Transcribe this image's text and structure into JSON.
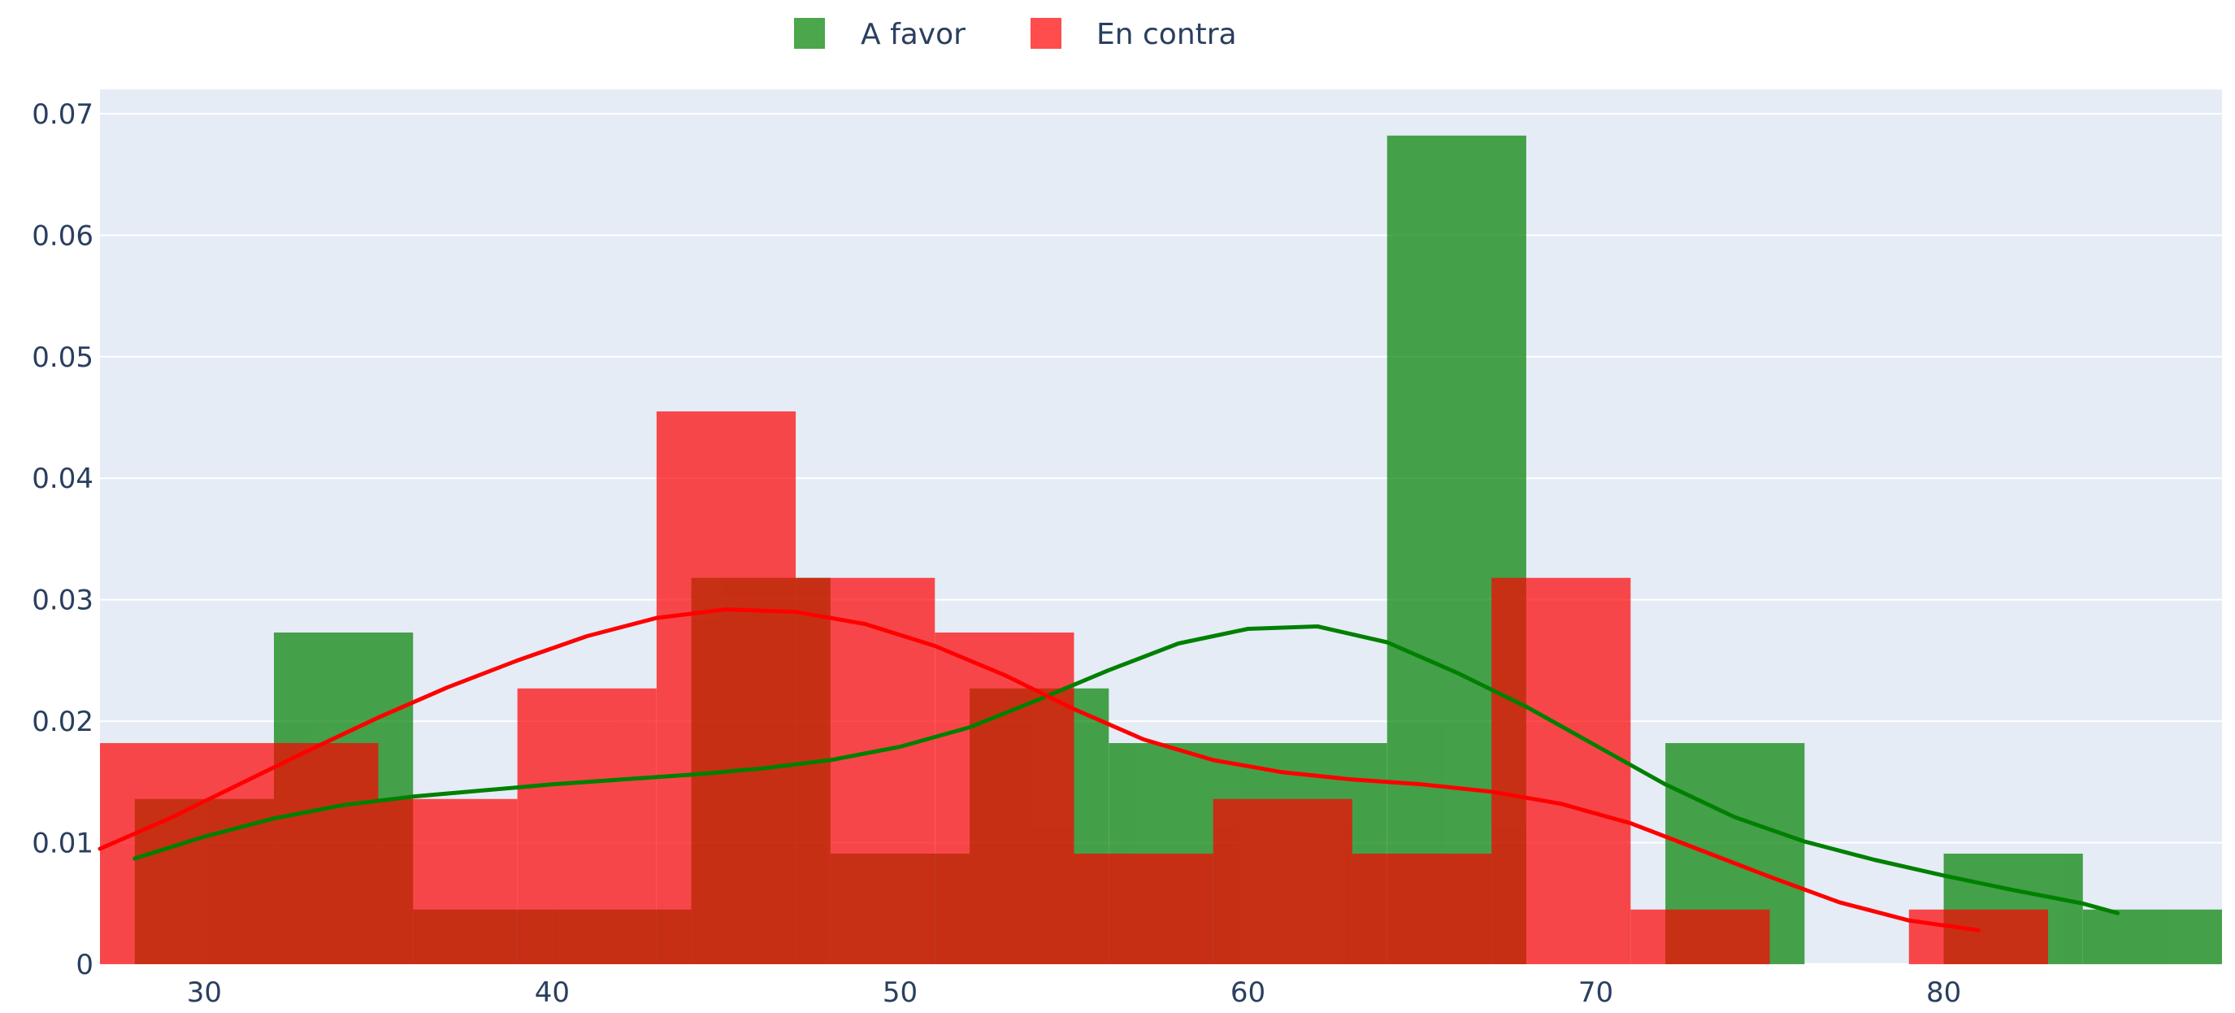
{
  "chart_data": {
    "type": "bar",
    "title": "",
    "xlabel": "",
    "ylabel": "",
    "xlim": [
      27,
      88
    ],
    "ylim": [
      0,
      0.072
    ],
    "x_ticks": [
      30,
      40,
      50,
      60,
      70,
      80
    ],
    "y_ticks": [
      0,
      0.01,
      0.02,
      0.03,
      0.04,
      0.05,
      0.06,
      0.07
    ],
    "y_tick_labels": [
      "0",
      "0.01",
      "0.02",
      "0.03",
      "0.04",
      "0.05",
      "0.06",
      "0.07"
    ],
    "grid": true,
    "legend_position": "top-center",
    "overlay": true,
    "series": [
      {
        "name": "A favor",
        "color": "#008000",
        "bins": [
          {
            "x0": 28,
            "x1": 32,
            "y": 0.0136
          },
          {
            "x0": 32,
            "x1": 36,
            "y": 0.0273
          },
          {
            "x0": 36,
            "x1": 40,
            "y": 0.0045
          },
          {
            "x0": 40,
            "x1": 44,
            "y": 0.0045
          },
          {
            "x0": 44,
            "x1": 48,
            "y": 0.0318
          },
          {
            "x0": 48,
            "x1": 52,
            "y": 0.0091
          },
          {
            "x0": 52,
            "x1": 56,
            "y": 0.0227
          },
          {
            "x0": 56,
            "x1": 60,
            "y": 0.0182
          },
          {
            "x0": 60,
            "x1": 64,
            "y": 0.0182
          },
          {
            "x0": 64,
            "x1": 68,
            "y": 0.0682
          },
          {
            "x0": 68,
            "x1": 72,
            "y": 0
          },
          {
            "x0": 72,
            "x1": 76,
            "y": 0.0182
          },
          {
            "x0": 76,
            "x1": 80,
            "y": 0
          },
          {
            "x0": 80,
            "x1": 84,
            "y": 0.0091
          },
          {
            "x0": 84,
            "x1": 88,
            "y": 0.0045
          }
        ],
        "kde": {
          "x": [
            28,
            30,
            32,
            34,
            36,
            38,
            40,
            42,
            44,
            46,
            48,
            50,
            52,
            54,
            56,
            58,
            60,
            62,
            64,
            66,
            68,
            70,
            72,
            74,
            76,
            78,
            80,
            82,
            84,
            85
          ],
          "y": [
            0.0087,
            0.0105,
            0.012,
            0.0131,
            0.0138,
            0.0143,
            0.0148,
            0.0152,
            0.0156,
            0.0161,
            0.0168,
            0.0179,
            0.0195,
            0.0218,
            0.0242,
            0.0264,
            0.0276,
            0.0278,
            0.0265,
            0.024,
            0.0212,
            0.018,
            0.0148,
            0.0121,
            0.0101,
            0.0086,
            0.0073,
            0.0061,
            0.005,
            0.0042
          ]
        }
      },
      {
        "name": "En contra",
        "color": "#ff0000",
        "bins": [
          {
            "x0": 27,
            "x1": 32,
            "y": 0.0182
          },
          {
            "x0": 32,
            "x1": 35,
            "y": 0.0182
          },
          {
            "x0": 35,
            "x1": 39,
            "y": 0.0136
          },
          {
            "x0": 39,
            "x1": 43,
            "y": 0.0227
          },
          {
            "x0": 43,
            "x1": 47,
            "y": 0.0455
          },
          {
            "x0": 47,
            "x1": 51,
            "y": 0.0318
          },
          {
            "x0": 51,
            "x1": 55,
            "y": 0.0273
          },
          {
            "x0": 55,
            "x1": 59,
            "y": 0.0091
          },
          {
            "x0": 59,
            "x1": 63,
            "y": 0.0136
          },
          {
            "x0": 63,
            "x1": 67,
            "y": 0.0091
          },
          {
            "x0": 67,
            "x1": 71,
            "y": 0.0318
          },
          {
            "x0": 71,
            "x1": 75,
            "y": 0.0045
          },
          {
            "x0": 75,
            "x1": 79,
            "y": 0
          },
          {
            "x0": 79,
            "x1": 83,
            "y": 0.0045
          }
        ],
        "kde": {
          "x": [
            27,
            29,
            31,
            33,
            35,
            37,
            39,
            41,
            43,
            45,
            47,
            49,
            51,
            53,
            55,
            57,
            59,
            61,
            63,
            65,
            67,
            69,
            71,
            73,
            75,
            77,
            79,
            81
          ],
          "y": [
            0.0095,
            0.012,
            0.0148,
            0.0176,
            0.0203,
            0.0228,
            0.025,
            0.027,
            0.0285,
            0.0292,
            0.029,
            0.028,
            0.0262,
            0.0238,
            0.021,
            0.0185,
            0.0168,
            0.0158,
            0.0152,
            0.0148,
            0.0142,
            0.0132,
            0.0116,
            0.0094,
            0.0072,
            0.0051,
            0.0036,
            0.0028
          ]
        }
      }
    ]
  }
}
